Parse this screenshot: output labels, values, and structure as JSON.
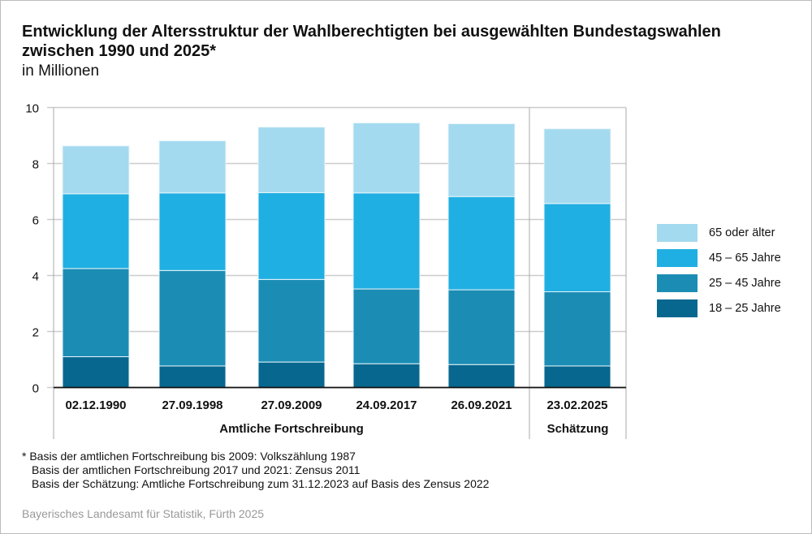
{
  "chart_data": {
    "type": "bar",
    "stacked": true,
    "title": "Entwicklung der Altersstruktur der Wahlberechtigten bei ausgewählten Bundestagswahlen zwischen 1990 und 2025*",
    "title_line1": "Entwicklung der Altersstruktur der Wahlberechtigten bei ausgewählten Bundestagswahlen",
    "title_line2": "zwischen 1990 und 2025*",
    "ylabel": "in Millionen",
    "ylim": [
      0,
      10
    ],
    "yticks": [
      "0",
      "2",
      "4",
      "6",
      "8",
      "10"
    ],
    "categories": [
      "02.12.1990",
      "27.09.1998",
      "27.09.2009",
      "24.09.2017",
      "26.09.2021",
      "23.02.2025"
    ],
    "groups": [
      {
        "label": "Amtliche Fortschreibung",
        "count": 5
      },
      {
        "label": "Schätzung",
        "count": 1
      }
    ],
    "series": [
      {
        "name": "18 – 25 Jahre",
        "color": "#08678e",
        "values": [
          1.1,
          0.77,
          0.91,
          0.85,
          0.82,
          0.77
        ]
      },
      {
        "name": "25 – 45 Jahre",
        "color": "#1b8db5",
        "values": [
          3.15,
          3.41,
          2.95,
          2.67,
          2.67,
          2.65
        ]
      },
      {
        "name": "45 – 65 Jahre",
        "color": "#20afe2",
        "values": [
          2.67,
          2.77,
          3.1,
          3.43,
          3.33,
          3.15
        ]
      },
      {
        "name": "65 oder älter",
        "color": "#a4daef",
        "values": [
          1.71,
          1.86,
          2.34,
          2.5,
          2.6,
          2.67
        ]
      }
    ],
    "legend_position": "right",
    "grid": true
  },
  "footnotes": [
    "* Basis der amtlichen Fortschreibung bis 2009: Volkszählung 1987",
    "Basis der amtlichen Fortschreibung 2017 und 2021: Zensus 2011",
    "Basis der Schätzung: Amtliche Fortschreibung zum 31.12.2023 auf Basis des Zensus 2022"
  ],
  "source": "Bayerisches Landesamt für Statistik, Fürth 2025"
}
